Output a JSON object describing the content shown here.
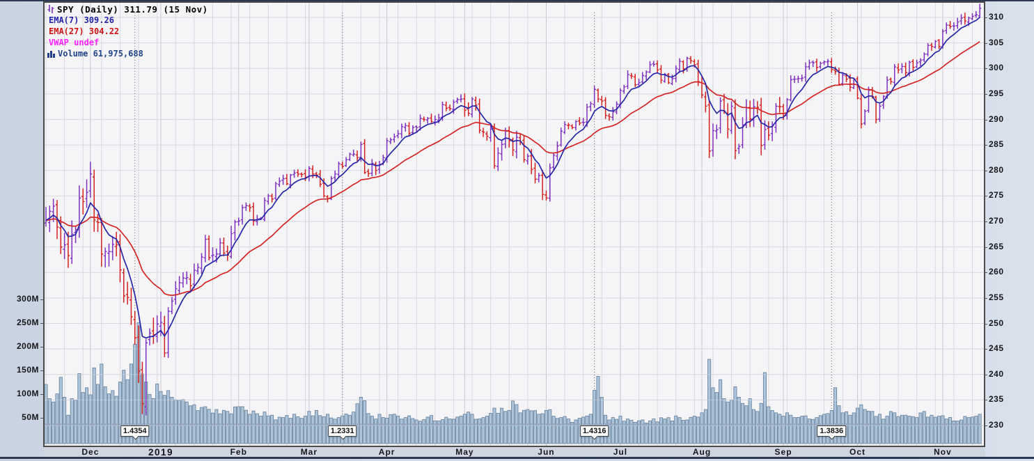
{
  "chart": {
    "title": "SPY (Daily) 311.79 (15 Nov)",
    "symbol": "SPY",
    "timeframe": "Daily",
    "last_price": "311.79",
    "last_date": "15 Nov"
  },
  "legend_rows": [
    {
      "icon": "candlestick-icon",
      "label": "SPY (Daily) 311.79 (15 Nov)",
      "color": "#7f30c0",
      "text_color": "#000000"
    },
    {
      "icon": "line-swatch-icon",
      "label": "EMA(7) 309.26",
      "color": "#2323a8",
      "text_color": "#2323a8"
    },
    {
      "icon": "line-swatch-icon",
      "label": "EMA(27) 304.22",
      "color": "#cc1414",
      "text_color": "#cc1414"
    },
    {
      "icon": "line-swatch-icon",
      "label": "VWAP undef",
      "color": "#ff22ff",
      "text_color": "#ff22ff"
    },
    {
      "icon": "volume-bars-icon",
      "label": "Volume 61,975,688",
      "color": "#223f88",
      "text_color": "#224488"
    }
  ],
  "chart_data": {
    "type": "candlestick",
    "title": "SPY (Daily) 311.79 (15 Nov)",
    "x_axis": {
      "labels": [
        "Dec",
        "2019",
        "Feb",
        "Mar",
        "Apr",
        "May",
        "Jun",
        "Jul",
        "Aug",
        "Sep",
        "Oct",
        "Nov"
      ],
      "month_start_days": [
        12,
        31,
        52,
        71,
        92,
        113,
        135,
        155,
        177,
        199,
        219,
        242
      ],
      "total_days": 253
    },
    "y_axis_price": {
      "min": 230,
      "max": 310,
      "step": 5,
      "side": "right"
    },
    "y_axis_volume": {
      "ticks_m": [
        50,
        100,
        150,
        200,
        250,
        300
      ],
      "side": "left"
    },
    "close": [
      270.2,
      272.0,
      273.0,
      268.9,
      265.0,
      265.4,
      263.3,
      267.5,
      268.4,
      274.6,
      273.9,
      275.7,
      279.3,
      270.3,
      269.8,
      263.6,
      264.1,
      264.1,
      265.5,
      265.4,
      260.5,
      255.4,
      255.1,
      251.3,
      247.2,
      240.7,
      234.3,
      246.2,
      248.1,
      247.8,
      249.9,
      250.2,
      244.2,
      252.4,
      254.4,
      256.8,
      258.0,
      258.9,
      259.0,
      257.4,
      260.4,
      261.0,
      263.0,
      266.5,
      262.9,
      263.4,
      263.6,
      265.8,
      263.8,
      263.4,
      267.6,
      269.9,
      270.1,
      272.7,
      273.1,
      272.7,
      270.1,
      270.5,
      270.6,
      274.1,
      275.0,
      274.4,
      277.4,
      277.9,
      278.4,
      277.4,
      279.1,
      279.5,
      279.3,
      279.2,
      278.7,
      280.4,
      279.3,
      279.1,
      277.3,
      275.0,
      274.5,
      278.4,
      279.3,
      281.3,
      280.8,
      282.1,
      283.2,
      283.2,
      282.5,
      285.1,
      279.6,
      279.4,
      281.4,
      280.0,
      281.2,
      282.5,
      285.8,
      286.0,
      286.6,
      287.2,
      288.6,
      288.8,
      287.3,
      288.4,
      288.4,
      290.2,
      290.0,
      290.2,
      289.6,
      290.0,
      290.3,
      292.9,
      292.2,
      292.1,
      293.4,
      293.9,
      294.0,
      291.8,
      291.2,
      294.0,
      292.8,
      287.9,
      287.5,
      286.7,
      288.1,
      280.9,
      283.4,
      285.1,
      287.7,
      285.8,
      284.0,
      286.5,
      285.6,
      282.1,
      282.8,
      280.2,
      278.3,
      279.0,
      275.3,
      274.6,
      280.5,
      283.0,
      284.8,
      287.7,
      289.0,
      288.9,
      288.4,
      289.6,
      289.3,
      289.4,
      292.4,
      293.1,
      295.9,
      294.0,
      293.6,
      290.8,
      290.5,
      291.5,
      293.0,
      295.7,
      296.4,
      298.8,
      298.5,
      296.8,
      297.2,
      298.6,
      299.3,
      300.7,
      300.8,
      299.7,
      297.7,
      298.8,
      297.2,
      298.0,
      300.0,
      301.4,
      299.9,
      302.0,
      301.5,
      300.7,
      297.4,
      294.8,
      292.6,
      283.8,
      287.8,
      288.0,
      293.6,
      291.6,
      288.1,
      292.6,
      283.9,
      284.7,
      288.9,
      292.3,
      290.1,
      292.5,
      292.4,
      284.9,
      288.0,
      286.9,
      288.9,
      292.6,
      292.5,
      290.7,
      293.9,
      297.8,
      297.9,
      298.0,
      298.1,
      300.3,
      301.1,
      301.1,
      300.2,
      301.0,
      301.3,
      301.4,
      299.8,
      299.4,
      296.9,
      298.7,
      297.9,
      296.3,
      297.8,
      294.2,
      289.1,
      291.6,
      295.7,
      294.5,
      290.0,
      292.6,
      294.5,
      297.7,
      297.4,
      300.3,
      299.7,
      300.4,
      299.2,
      301.2,
      300.2,
      301.1,
      301.6,
      302.8,
      304.5,
      304.3,
      305.3,
      304.3,
      307.3,
      308.5,
      308.2,
      308.3,
      309.1,
      309.9,
      309.3,
      309.9,
      310.2,
      310.5,
      311.79
    ],
    "volume_anchors_m": [
      [
        0,
        125
      ],
      [
        1,
        95
      ],
      [
        2,
        88
      ],
      [
        3,
        105
      ],
      [
        4,
        140
      ],
      [
        5,
        98
      ],
      [
        6,
        60
      ],
      [
        7,
        95
      ],
      [
        8,
        92
      ],
      [
        9,
        148
      ],
      [
        10,
        108
      ],
      [
        11,
        118
      ],
      [
        12,
        103
      ],
      [
        13,
        160
      ],
      [
        14,
        125
      ],
      [
        15,
        168
      ],
      [
        16,
        120
      ],
      [
        17,
        105
      ],
      [
        18,
        112
      ],
      [
        19,
        100
      ],
      [
        20,
        130
      ],
      [
        21,
        155
      ],
      [
        22,
        135
      ],
      [
        23,
        168
      ],
      [
        24,
        210
      ],
      [
        25,
        255
      ],
      [
        26,
        147
      ],
      [
        27,
        130
      ],
      [
        28,
        104
      ],
      [
        29,
        95
      ],
      [
        30,
        126
      ],
      [
        31,
        110
      ],
      [
        32,
        102
      ],
      [
        34,
        98
      ],
      [
        36,
        92
      ],
      [
        38,
        88
      ],
      [
        40,
        82
      ],
      [
        43,
        78
      ],
      [
        46,
        72
      ],
      [
        49,
        68
      ],
      [
        52,
        78
      ],
      [
        55,
        62
      ],
      [
        58,
        58
      ],
      [
        61,
        60
      ],
      [
        64,
        55
      ],
      [
        67,
        62
      ],
      [
        70,
        58
      ],
      [
        73,
        70
      ],
      [
        76,
        62
      ],
      [
        79,
        55
      ],
      [
        82,
        60
      ],
      [
        85,
        98
      ],
      [
        88,
        58
      ],
      [
        91,
        55
      ],
      [
        94,
        62
      ],
      [
        97,
        55
      ],
      [
        100,
        50
      ],
      [
        103,
        56
      ],
      [
        106,
        48
      ],
      [
        109,
        52
      ],
      [
        112,
        58
      ],
      [
        115,
        62
      ],
      [
        118,
        55
      ],
      [
        121,
        75
      ],
      [
        124,
        68
      ],
      [
        126,
        90
      ],
      [
        128,
        65
      ],
      [
        130,
        72
      ],
      [
        133,
        62
      ],
      [
        135,
        70
      ],
      [
        137,
        58
      ],
      [
        139,
        55
      ],
      [
        141,
        52
      ],
      [
        143,
        50
      ],
      [
        145,
        56
      ],
      [
        147,
        62
      ],
      [
        149,
        142
      ],
      [
        151,
        60
      ],
      [
        153,
        55
      ],
      [
        155,
        58
      ],
      [
        157,
        52
      ],
      [
        159,
        45
      ],
      [
        161,
        50
      ],
      [
        163,
        48
      ],
      [
        165,
        46
      ],
      [
        167,
        52
      ],
      [
        169,
        48
      ],
      [
        171,
        55
      ],
      [
        173,
        50
      ],
      [
        175,
        58
      ],
      [
        177,
        65
      ],
      [
        178,
        72
      ],
      [
        179,
        178
      ],
      [
        180,
        118
      ],
      [
        181,
        108
      ],
      [
        182,
        135
      ],
      [
        183,
        95
      ],
      [
        184,
        88
      ],
      [
        185,
        92
      ],
      [
        186,
        120
      ],
      [
        187,
        98
      ],
      [
        188,
        85
      ],
      [
        189,
        80
      ],
      [
        190,
        95
      ],
      [
        191,
        72
      ],
      [
        192,
        68
      ],
      [
        193,
        85
      ],
      [
        194,
        150
      ],
      [
        195,
        78
      ],
      [
        196,
        70
      ],
      [
        197,
        65
      ],
      [
        198,
        62
      ],
      [
        199,
        58
      ],
      [
        200,
        65
      ],
      [
        201,
        60
      ],
      [
        202,
        55
      ],
      [
        204,
        58
      ],
      [
        206,
        52
      ],
      [
        208,
        55
      ],
      [
        210,
        62
      ],
      [
        212,
        70
      ],
      [
        213,
        118
      ],
      [
        214,
        80
      ],
      [
        215,
        65
      ],
      [
        217,
        60
      ],
      [
        219,
        75
      ],
      [
        220,
        82
      ],
      [
        221,
        72
      ],
      [
        223,
        68
      ],
      [
        225,
        62
      ],
      [
        227,
        58
      ],
      [
        229,
        65
      ],
      [
        231,
        60
      ],
      [
        233,
        58
      ],
      [
        235,
        55
      ],
      [
        237,
        68
      ],
      [
        239,
        60
      ],
      [
        241,
        58
      ],
      [
        243,
        52
      ],
      [
        245,
        48
      ],
      [
        247,
        50
      ],
      [
        249,
        55
      ],
      [
        251,
        58
      ],
      [
        252,
        62
      ]
    ],
    "overlays": [
      {
        "name": "EMA",
        "period": 7,
        "last_value": 309.26,
        "color": "#2323a8"
      },
      {
        "name": "EMA",
        "period": 27,
        "last_value": 304.22,
        "color": "#cc1414"
      },
      {
        "name": "VWAP",
        "value": "undef",
        "color": "#ff22ff"
      }
    ],
    "volume_last": "61,975,688",
    "annotations": [
      {
        "label": "1.4354",
        "day": 24
      },
      {
        "label": "1.2331",
        "day": 80
      },
      {
        "label": "1.4316",
        "day": 148
      },
      {
        "label": "1.3836",
        "day": 212
      }
    ]
  },
  "colors": {
    "up_bar": "#7f30c0",
    "down_bar": "#d41f1f",
    "ema7": "#2626a8",
    "ema27": "#d42525",
    "volume_fill": "#aec4da",
    "volume_stroke": "#627e99",
    "grid": "#d9d9df",
    "grid_month": "#c8c9d4",
    "plot_bg": "#f5f5f7",
    "dotted_line": "#606060"
  }
}
